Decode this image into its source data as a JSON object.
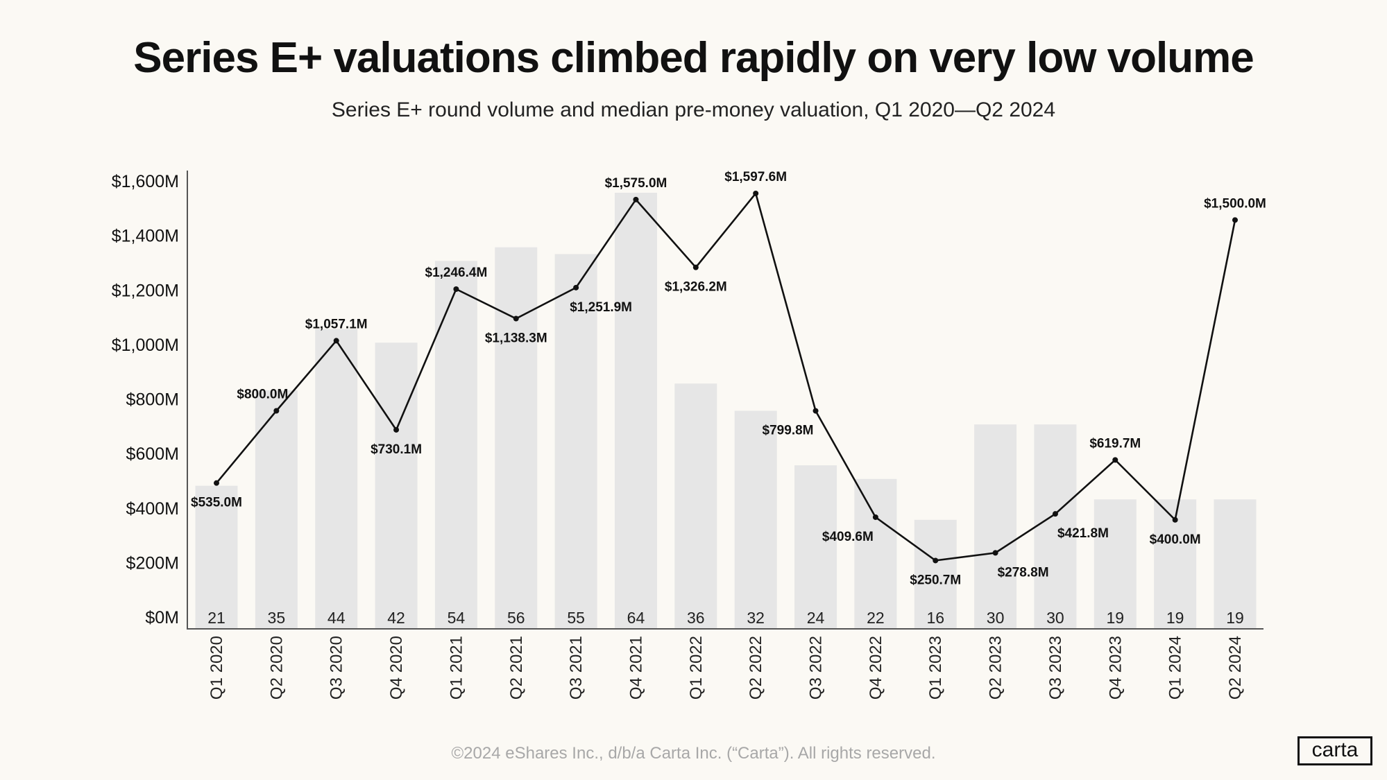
{
  "chart_data": {
    "type": "bar+line",
    "title": "Series E+ valuations climbed rapidly on very low volume",
    "subtitle": "Series E+ round volume and median pre-money valuation, Q1 2020—Q2 2024",
    "categories": [
      "Q1 2020",
      "Q2 2020",
      "Q3 2020",
      "Q4 2020",
      "Q1 2021",
      "Q2 2021",
      "Q3 2021",
      "Q4 2021",
      "Q1 2022",
      "Q2 2022",
      "Q3 2022",
      "Q4 2022",
      "Q1 2023",
      "Q2 2023",
      "Q3 2023",
      "Q4 2023",
      "Q1 2024",
      "Q2 2024"
    ],
    "series": [
      {
        "type": "bar",
        "values": [
          21,
          35,
          44,
          42,
          54,
          56,
          55,
          64,
          36,
          32,
          24,
          22,
          16,
          30,
          30,
          19,
          19,
          19
        ],
        "color": "#e6e6e6"
      },
      {
        "type": "line",
        "values": [
          535.0,
          800.0,
          1057.1,
          730.1,
          1246.4,
          1138.3,
          1251.9,
          1575.0,
          1326.2,
          1597.6,
          799.8,
          409.6,
          250.7,
          278.8,
          421.8,
          619.7,
          400.0,
          1500.0
        ],
        "labels": [
          "$535.0M",
          "$800.0M",
          "$1,057.1M",
          "$730.1M",
          "$1,246.4M",
          "$1,138.3M",
          "$1,251.9M",
          "$1,575.0M",
          "$1,326.2M",
          "$1,597.6M",
          "$799.8M",
          "$409.6M",
          "$250.7M",
          "$278.8M",
          "$421.8M",
          "$619.7M",
          "$400.0M",
          "$1,500.0M"
        ],
        "color": "#111111"
      }
    ],
    "y_ticks": [
      "$0M",
      "$200M",
      "$400M",
      "$600M",
      "$800M",
      "$1,000M",
      "$1,200M",
      "$1,400M",
      "$1,600M"
    ],
    "ylim": [
      0,
      1600
    ],
    "grid": false,
    "legend": "none"
  },
  "footer": "©2024 eShares Inc., d/b/a Carta Inc. (“Carta”). All rights reserved.",
  "logo": "carta",
  "colors": {
    "background": "#fbf9f4",
    "bar": "#e6e6e6",
    "line": "#111111"
  }
}
